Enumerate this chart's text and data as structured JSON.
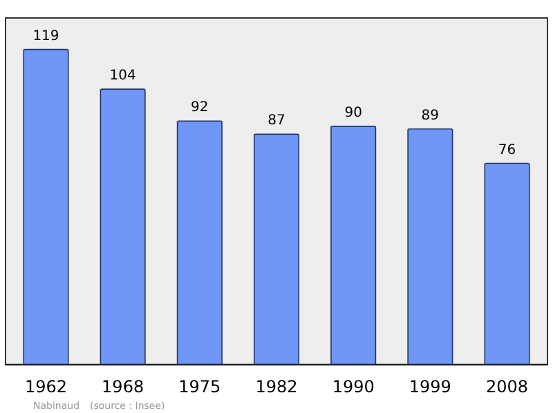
{
  "chart_data": {
    "type": "bar",
    "categories": [
      "1962",
      "1968",
      "1975",
      "1982",
      "1990",
      "1999",
      "2008"
    ],
    "values": [
      119,
      104,
      92,
      87,
      90,
      89,
      76
    ],
    "color": "#7096f8",
    "data_labels": true,
    "annotations": [
      "Nabinaud",
      "(source : Insee)"
    ]
  }
}
